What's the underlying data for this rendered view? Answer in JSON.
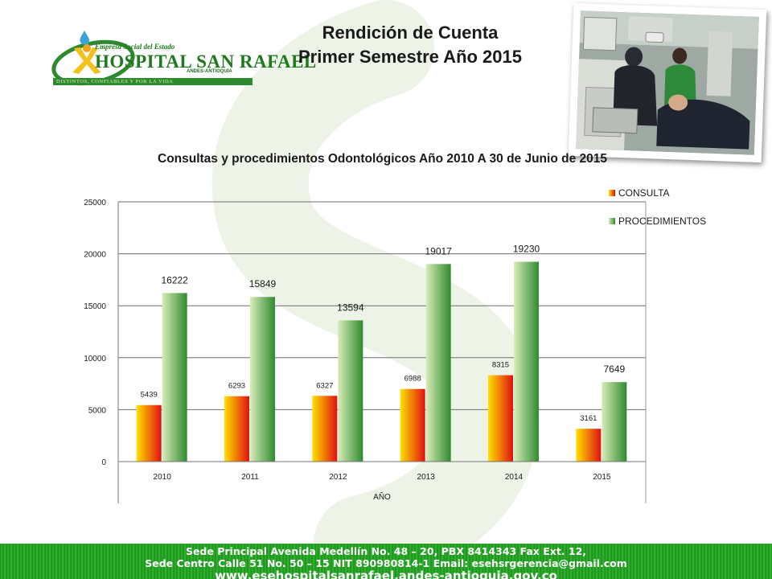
{
  "logo": {
    "top_text": "Empresa Social del Estado",
    "name": "HOSPITAL SAN RAFAEL",
    "location": "ANDES-ANTIOQUIA",
    "slogan": "DISTINTOS, CONFIABLES Y POR LA VIDA"
  },
  "header": {
    "title_line1": "Rendición de Cuenta",
    "title_line2": "Primer Semestre  Año  2015"
  },
  "colors": {
    "consulta_gradient": [
      "#ffe000",
      "#e01010"
    ],
    "procedimientos_gradient": [
      "#d8ecb8",
      "#2f8a2f"
    ],
    "footer_green": "#1e9a1e",
    "swirl_green": "#eef3e8"
  },
  "chart_data": {
    "type": "bar",
    "title": "Consultas y procedimientos   Odontológicos    Año 2010 A 30 de Junio de 2015",
    "xlabel": "AÑO",
    "ylabel": "",
    "categories": [
      "2010",
      "2011",
      "2012",
      "2013",
      "2014",
      "2015"
    ],
    "series": [
      {
        "name": "CONSULTA",
        "values": [
          5439,
          6293,
          6327,
          6988,
          8315,
          3161
        ]
      },
      {
        "name": "PROCEDIMIENTOS",
        "values": [
          16222,
          15849,
          13594,
          19017,
          19230,
          7649
        ]
      }
    ],
    "ylim": [
      0,
      25000
    ],
    "yticks": [
      "0",
      "5000",
      "10000",
      "15000",
      "20000",
      "25000"
    ],
    "grid": true,
    "legend_position": "top-right"
  },
  "footer": {
    "line1": "Sede Principal Avenida Medellín No. 48 – 20, PBX 8414343 Fax Ext. 12,",
    "line2": "Sede Centro Calle 51 No. 50 – 15 NIT 890980814-1 Email: esehsrgerencia@gmail.com",
    "line3": "www.esehospitalsanrafael.andes-antioquia.gov.co"
  }
}
